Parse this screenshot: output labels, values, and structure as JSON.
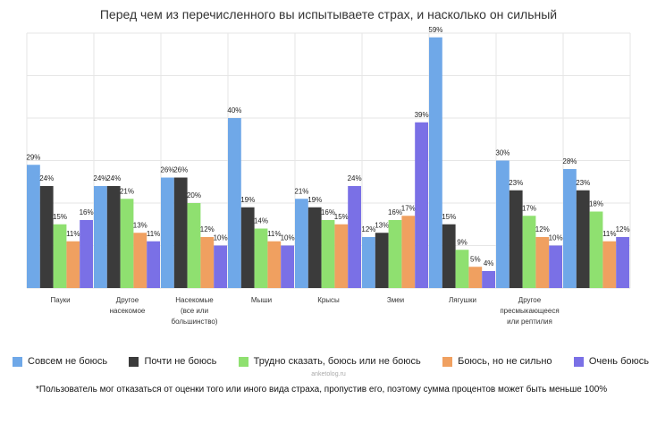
{
  "chart_data": {
    "type": "bar",
    "title": "Перед чем из перечисленного вы испытываете страх, и насколько он сильный",
    "xlabel": "",
    "ylabel": "",
    "ylim": [
      0,
      60
    ],
    "categories": [
      [
        "Пауки"
      ],
      [
        "Другое",
        "насекомое"
      ],
      [
        "Насекомые",
        "(все или",
        "большинство)"
      ],
      [
        "Мыши"
      ],
      [
        "Крысы"
      ],
      [
        "Змеи"
      ],
      [
        "Лягушки"
      ],
      [
        "Другое",
        "пресмыкающееся",
        "или рептилия"
      ],
      [
        ""
      ]
    ],
    "series": [
      {
        "name": "Совсем не боюсь",
        "color": "#6fa8e8",
        "values": [
          29,
          24,
          26,
          40,
          21,
          12,
          59,
          30,
          28
        ]
      },
      {
        "name": "Почти не боюсь",
        "color": "#3b3b3b",
        "values": [
          24,
          24,
          26,
          19,
          19,
          13,
          15,
          23,
          23
        ]
      },
      {
        "name": "Трудно сказать, боюсь или не боюсь",
        "color": "#8fe070",
        "values": [
          15,
          21,
          20,
          14,
          16,
          16,
          9,
          17,
          18
        ]
      },
      {
        "name": "Боюсь, но не сильно",
        "color": "#f0a060",
        "values": [
          11,
          13,
          12,
          11,
          15,
          17,
          5,
          12,
          11
        ]
      },
      {
        "name": "Очень боюсь",
        "color": "#7a70e6",
        "values": [
          16,
          11,
          10,
          10,
          24,
          39,
          4,
          10,
          12
        ]
      }
    ],
    "value_suffix": "%",
    "grid": true,
    "legend_position": "bottom"
  },
  "watermark": "anketolog.ru",
  "footnote": "*Пользователь мог отказаться от оценки того или иного вида страха, пропустив его, поэтому сумма процентов может быть меньше 100%"
}
